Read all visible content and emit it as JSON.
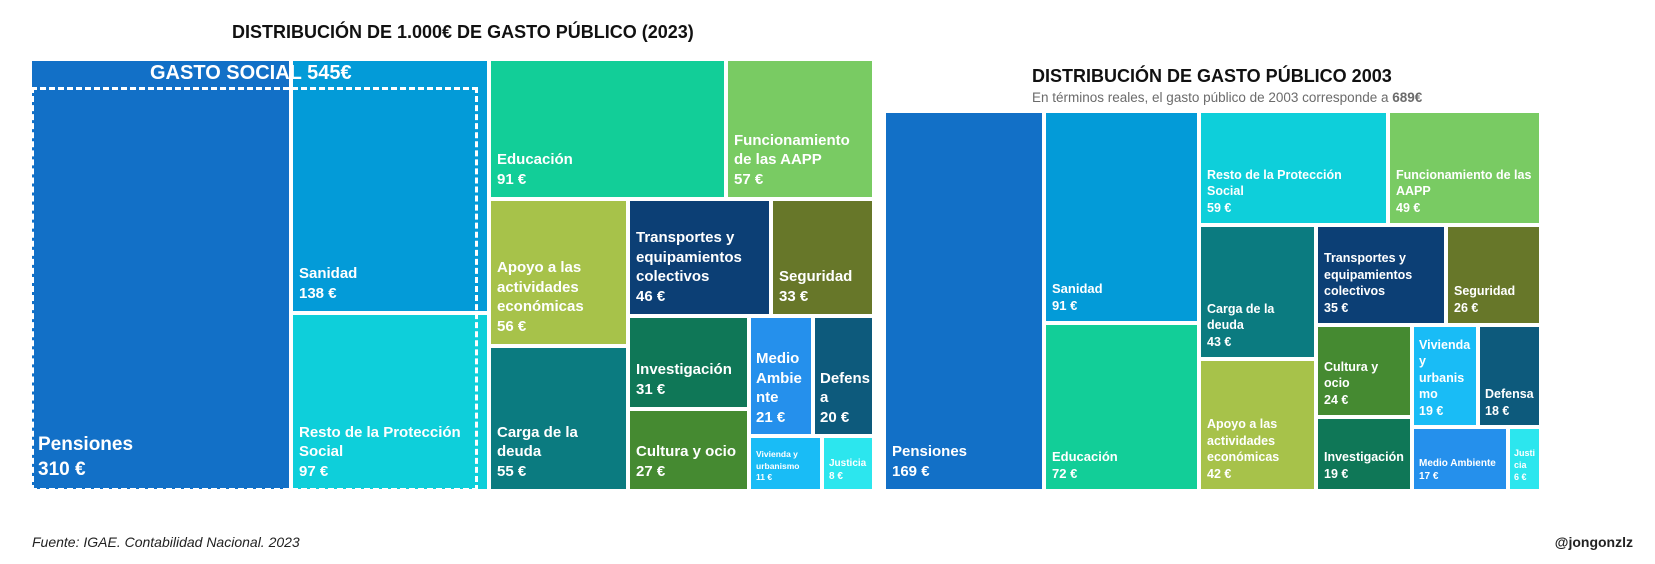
{
  "chart_data": [
    {
      "type": "treemap",
      "title": "DISTRIBUCIÓN DE 1.000€ DE GASTO PÚBLICO (2023)",
      "group": {
        "name": "GASTO SOCIAL",
        "value_label": "545€"
      },
      "items": [
        {
          "name": "Pensiones",
          "value": 310,
          "value_label": "310 €",
          "color": "#1270C7"
        },
        {
          "name": "Sanidad",
          "value": 138,
          "value_label": "138 €",
          "color": "#039BD8"
        },
        {
          "name": "Resto de la Protección Social",
          "value": 97,
          "value_label": "97 €",
          "color": "#0ECFDA"
        },
        {
          "name": "Educación",
          "value": 91,
          "value_label": "91 €",
          "color": "#12CE98"
        },
        {
          "name": "Funcionamiento de las AAPP",
          "value": 57,
          "value_label": "57 €",
          "color": "#79CB63"
        },
        {
          "name": "Apoyo a las actividades económicas",
          "value": 56,
          "value_label": "56 €",
          "color": "#A7C24A"
        },
        {
          "name": "Transportes y equipamientos colectivos",
          "value": 46,
          "value_label": "46 €",
          "color": "#0C3F75"
        },
        {
          "name": "Seguridad",
          "value": 33,
          "value_label": "33 €",
          "color": "#677729"
        },
        {
          "name": "Carga de la deuda",
          "value": 55,
          "value_label": "55 €",
          "color": "#0B7B80"
        },
        {
          "name": "Investigación",
          "value": 31,
          "value_label": "31 €",
          "color": "#0F7757"
        },
        {
          "name": "Cultura y ocio",
          "value": 27,
          "value_label": "27 €",
          "color": "#458A31"
        },
        {
          "name": "Medio Ambiente",
          "value": 21,
          "value_label": "21 €",
          "color": "#2590EC"
        },
        {
          "name": "Defensa",
          "value": 20,
          "value_label": "20 €",
          "color": "#0D5A7C"
        },
        {
          "name": "Vivienda y urbanismo",
          "value": 11,
          "value_label": "11 €",
          "color": "#19BCF6"
        },
        {
          "name": "Justicia",
          "value": 8,
          "value_label": "8 €",
          "color": "#2CE6EE"
        }
      ]
    },
    {
      "type": "treemap",
      "title": "DISTRIBUCIÓN DE GASTO PÚBLICO 2003",
      "subtitle_prefix": "En términos reales, el gasto público de 2003 corresponde a",
      "subtitle_value": "689€",
      "items": [
        {
          "name": "Pensiones",
          "value": 169,
          "value_label": "169 €",
          "color": "#1270C7"
        },
        {
          "name": "Sanidad",
          "value": 91,
          "value_label": "91 €",
          "color": "#039BD8"
        },
        {
          "name": "Educación",
          "value": 72,
          "value_label": "72 €",
          "color": "#12CE98"
        },
        {
          "name": "Resto de la Protección Social",
          "value": 59,
          "value_label": "59 €",
          "color": "#0ECFDA"
        },
        {
          "name": "Funcionamiento de las AAPP",
          "value": 49,
          "value_label": "49 €",
          "color": "#79CB63"
        },
        {
          "name": "Carga de la deuda",
          "value": 43,
          "value_label": "43 €",
          "color": "#0B7B80"
        },
        {
          "name": "Transportes y equipamientos colectivos",
          "value": 35,
          "value_label": "35 €",
          "color": "#0C3F75"
        },
        {
          "name": "Seguridad",
          "value": 26,
          "value_label": "26 €",
          "color": "#677729"
        },
        {
          "name": "Apoyo a las actividades económicas",
          "value": 42,
          "value_label": "42 €",
          "color": "#A7C24A"
        },
        {
          "name": "Cultura y ocio",
          "value": 24,
          "value_label": "24 €",
          "color": "#458A31"
        },
        {
          "name": "Investigación",
          "value": 19,
          "value_label": "19 €",
          "color": "#0F7757"
        },
        {
          "name": "Vivienda y urbanismo",
          "value": 19,
          "value_label": "19 €",
          "color": "#19BCF6"
        },
        {
          "name": "Defensa",
          "value": 18,
          "value_label": "18 €",
          "color": "#0D5A7C"
        },
        {
          "name": "Medio Ambiente",
          "value": 17,
          "value_label": "17 €",
          "color": "#2590EC"
        },
        {
          "name": "Justicia",
          "value": 6,
          "value_label": "6 €",
          "color": "#2CE6EE"
        }
      ]
    }
  ],
  "footer": {
    "source": "Fuente: IGAE. Contabilidad Nacional. 2023",
    "handle": "@jongonzlz"
  }
}
